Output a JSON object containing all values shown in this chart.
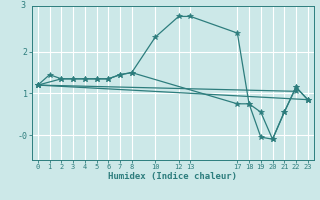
{
  "background_color": "#cce8e8",
  "grid_color": "#ffffff",
  "line_color": "#2d7d7d",
  "xlabel": "Humidex (Indice chaleur)",
  "xlim": [
    -0.5,
    23.5
  ],
  "ylim": [
    -0.6,
    3.1
  ],
  "xticks": [
    0,
    1,
    2,
    3,
    4,
    5,
    6,
    7,
    8,
    10,
    12,
    13,
    17,
    18,
    19,
    20,
    21,
    22,
    23
  ],
  "yticks": [
    0,
    1,
    2
  ],
  "ytick_labels": [
    "-0",
    "1",
    "2"
  ],
  "series": [
    {
      "x": [
        0,
        1,
        2,
        3,
        4,
        5,
        6,
        7,
        8,
        10,
        12,
        13,
        17,
        18,
        19,
        20,
        21,
        22,
        23
      ],
      "y": [
        1.2,
        1.45,
        1.35,
        1.35,
        1.35,
        1.35,
        1.35,
        1.45,
        1.5,
        2.35,
        2.85,
        2.85,
        2.45,
        0.75,
        -0.05,
        -0.1,
        0.55,
        1.15,
        0.85
      ]
    },
    {
      "x": [
        0,
        2,
        3,
        4,
        5,
        6,
        7,
        8,
        17,
        18,
        19,
        20,
        21,
        22,
        23
      ],
      "y": [
        1.2,
        1.35,
        1.35,
        1.35,
        1.35,
        1.35,
        1.45,
        1.5,
        0.75,
        0.75,
        0.55,
        -0.1,
        0.55,
        1.15,
        0.85
      ]
    },
    {
      "x": [
        0,
        22
      ],
      "y": [
        1.2,
        1.05
      ]
    },
    {
      "x": [
        0,
        23
      ],
      "y": [
        1.2,
        0.85
      ]
    }
  ],
  "title_partial": "3"
}
